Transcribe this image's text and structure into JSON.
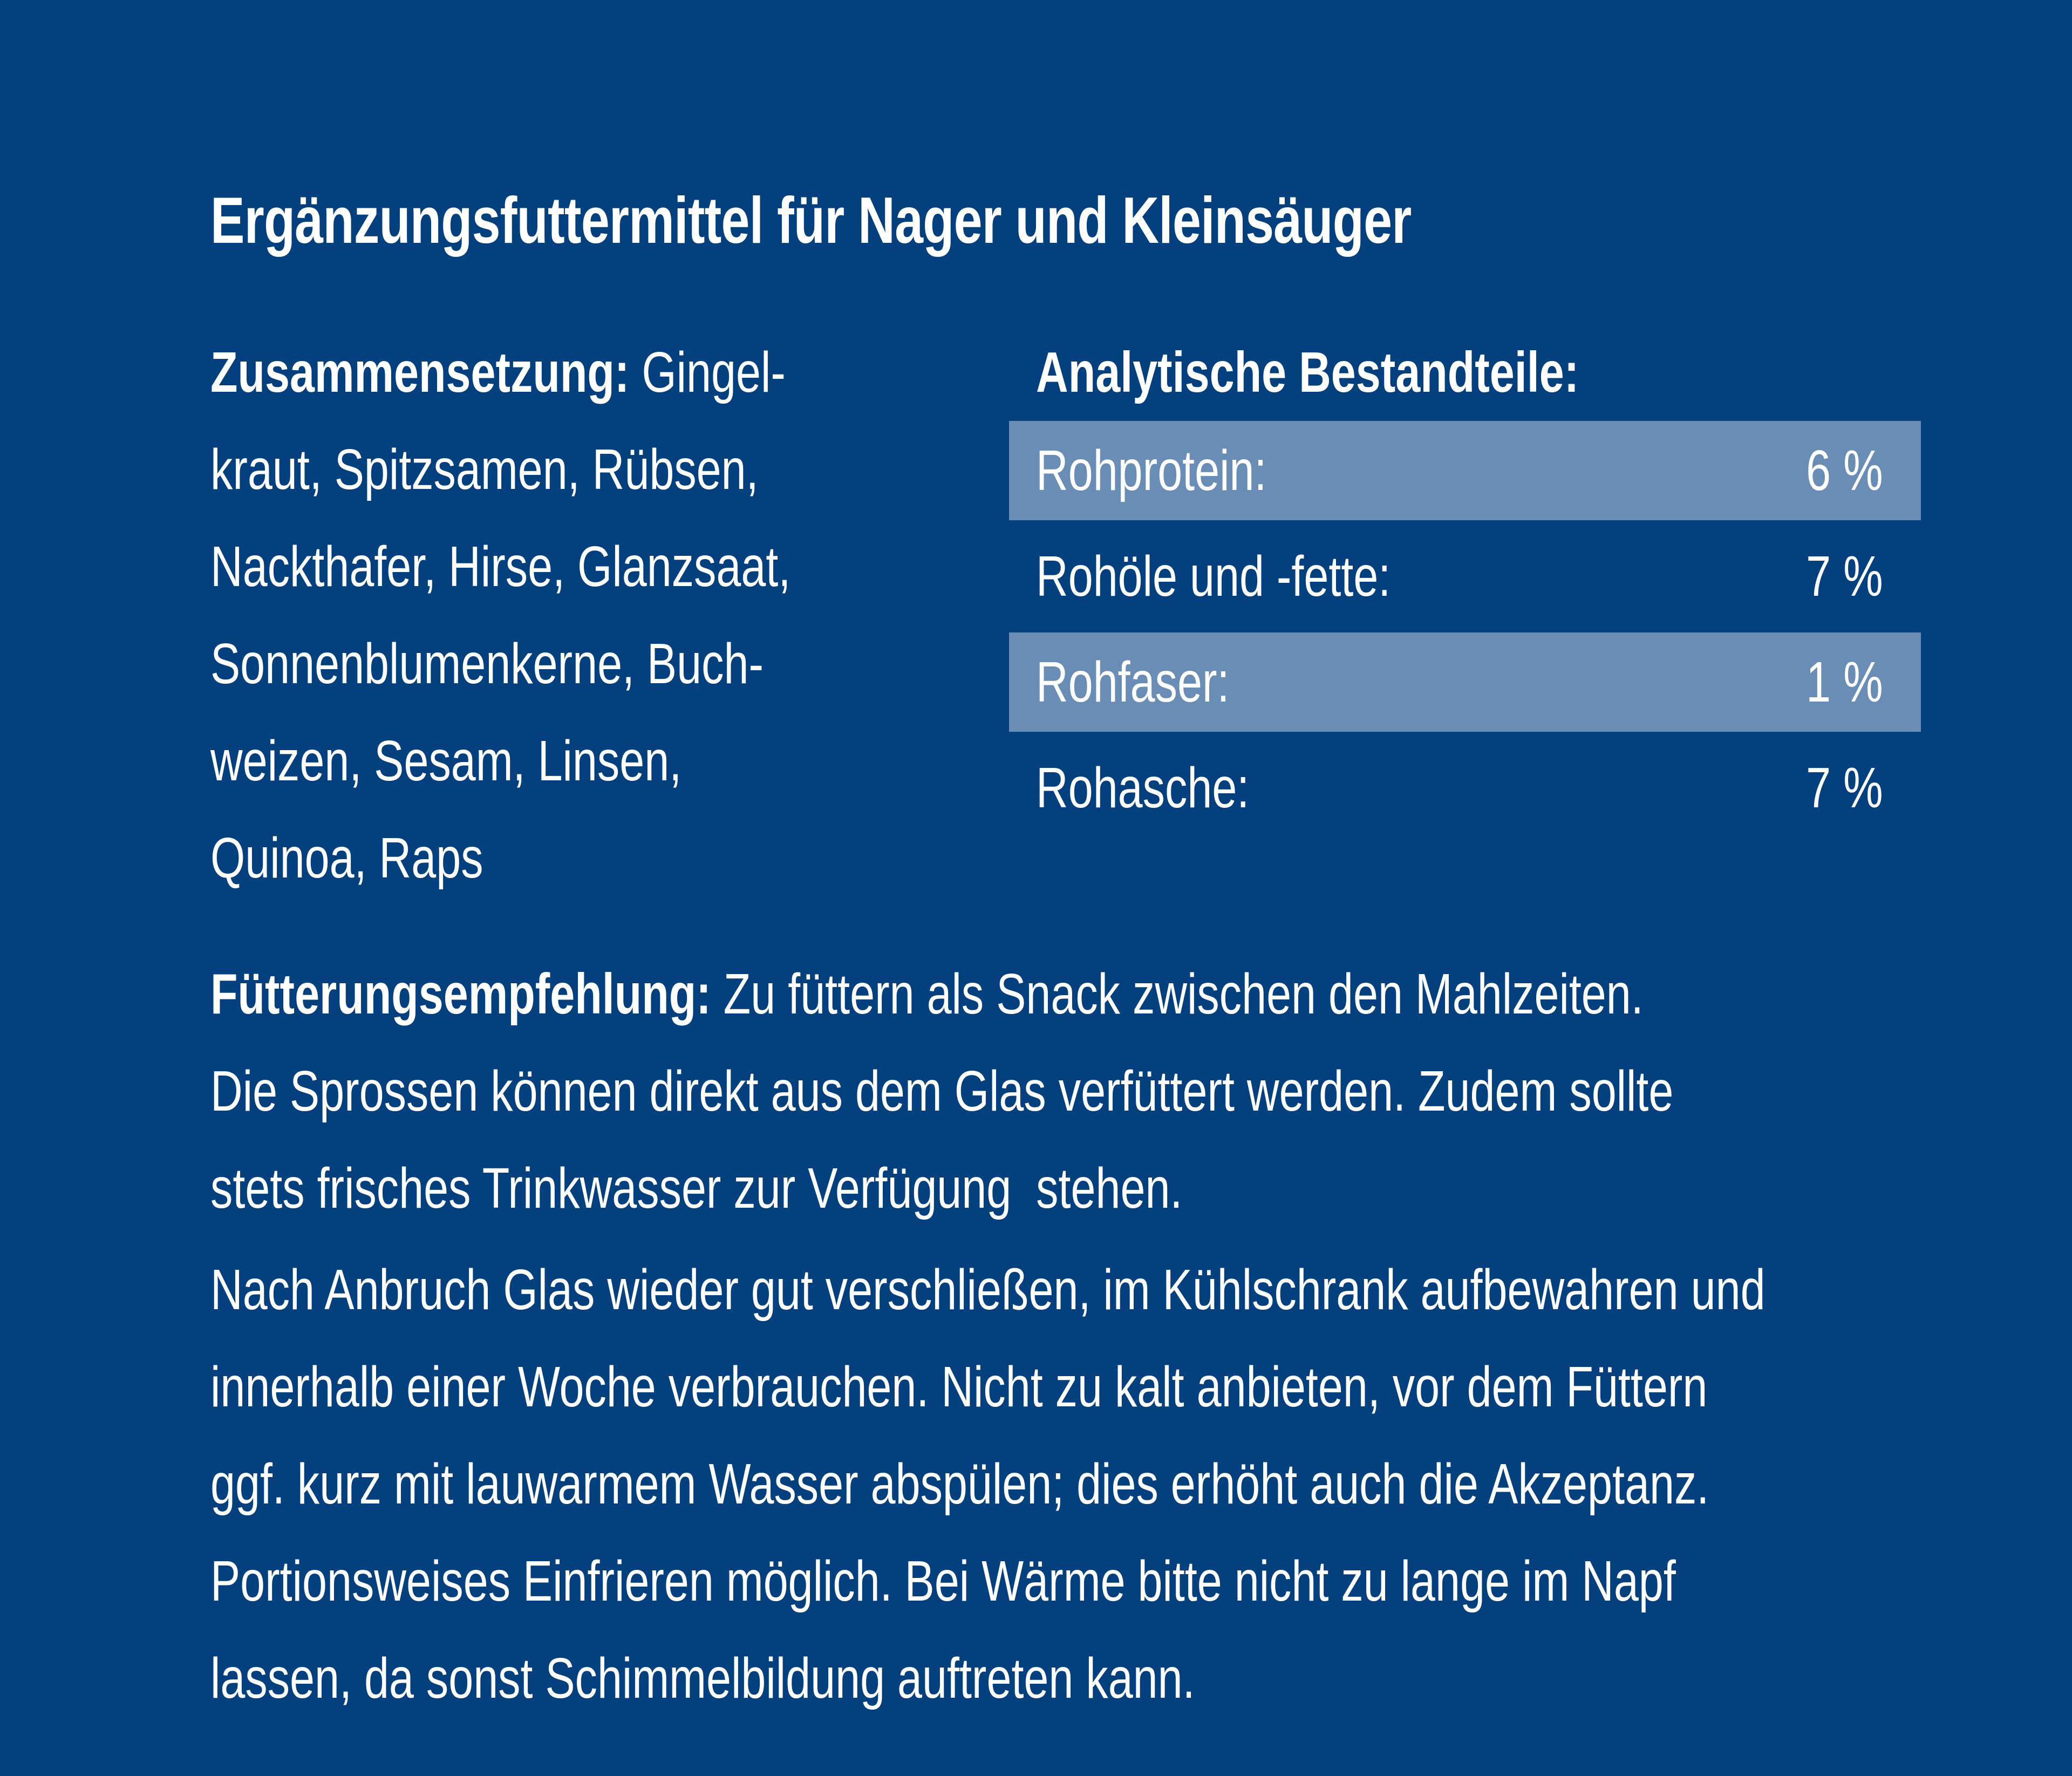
{
  "colors": {
    "background": "#043F7E",
    "highlight": "#6A8DB5",
    "text": "#FFFFFF"
  },
  "title": "Ergänzungsfuttermittel für Nager und Kleinsäuger",
  "composition": {
    "label": "Zusammensetzung:",
    "first_line_rest": " Gingel-",
    "lines": [
      "kraut, Spitzsamen, Rübsen,",
      "Nackthafer, Hirse, Glanzsaat,",
      "Sonnenblumenkerne, Buch-",
      "weizen, Sesam, Linsen,",
      "Quinoa, Raps"
    ]
  },
  "analysis": {
    "heading": "Analytische Bestandteile:",
    "rows": [
      {
        "label": "Rohprotein:",
        "value": "6 %",
        "highlighted": true
      },
      {
        "label": "Rohöle und -fette:",
        "value": "7 %",
        "highlighted": false
      },
      {
        "label": "Rohfaser:",
        "value": "1 %",
        "highlighted": true
      },
      {
        "label": "Rohasche:",
        "value": "7 %",
        "highlighted": false
      }
    ]
  },
  "feeding": {
    "label": "Fütterungsempfehlung:",
    "first_line_rest": " Zu füttern als Snack zwischen den Mahlzeiten.",
    "lines": [
      "Die Sprossen können direkt aus dem Glas verfüttert werden. Zudem sollte",
      "stets frisches Trinkwasser zur Verfügung  stehen."
    ]
  },
  "storage": {
    "lines": [
      "Nach Anbruch Glas wieder gut verschließen, im Kühlschrank aufbewahren und",
      "innerhalb einer Woche verbrauchen. Nicht zu kalt anbieten, vor dem Füttern",
      "ggf. kurz mit lauwarmem Wasser abspülen; dies erhöht auch die Akzeptanz.",
      "Portionsweises Einfrieren möglich. Bei Wärme bitte nicht zu lange im Napf",
      "lassen, da sonst Schimmelbildung auftreten kann."
    ]
  }
}
